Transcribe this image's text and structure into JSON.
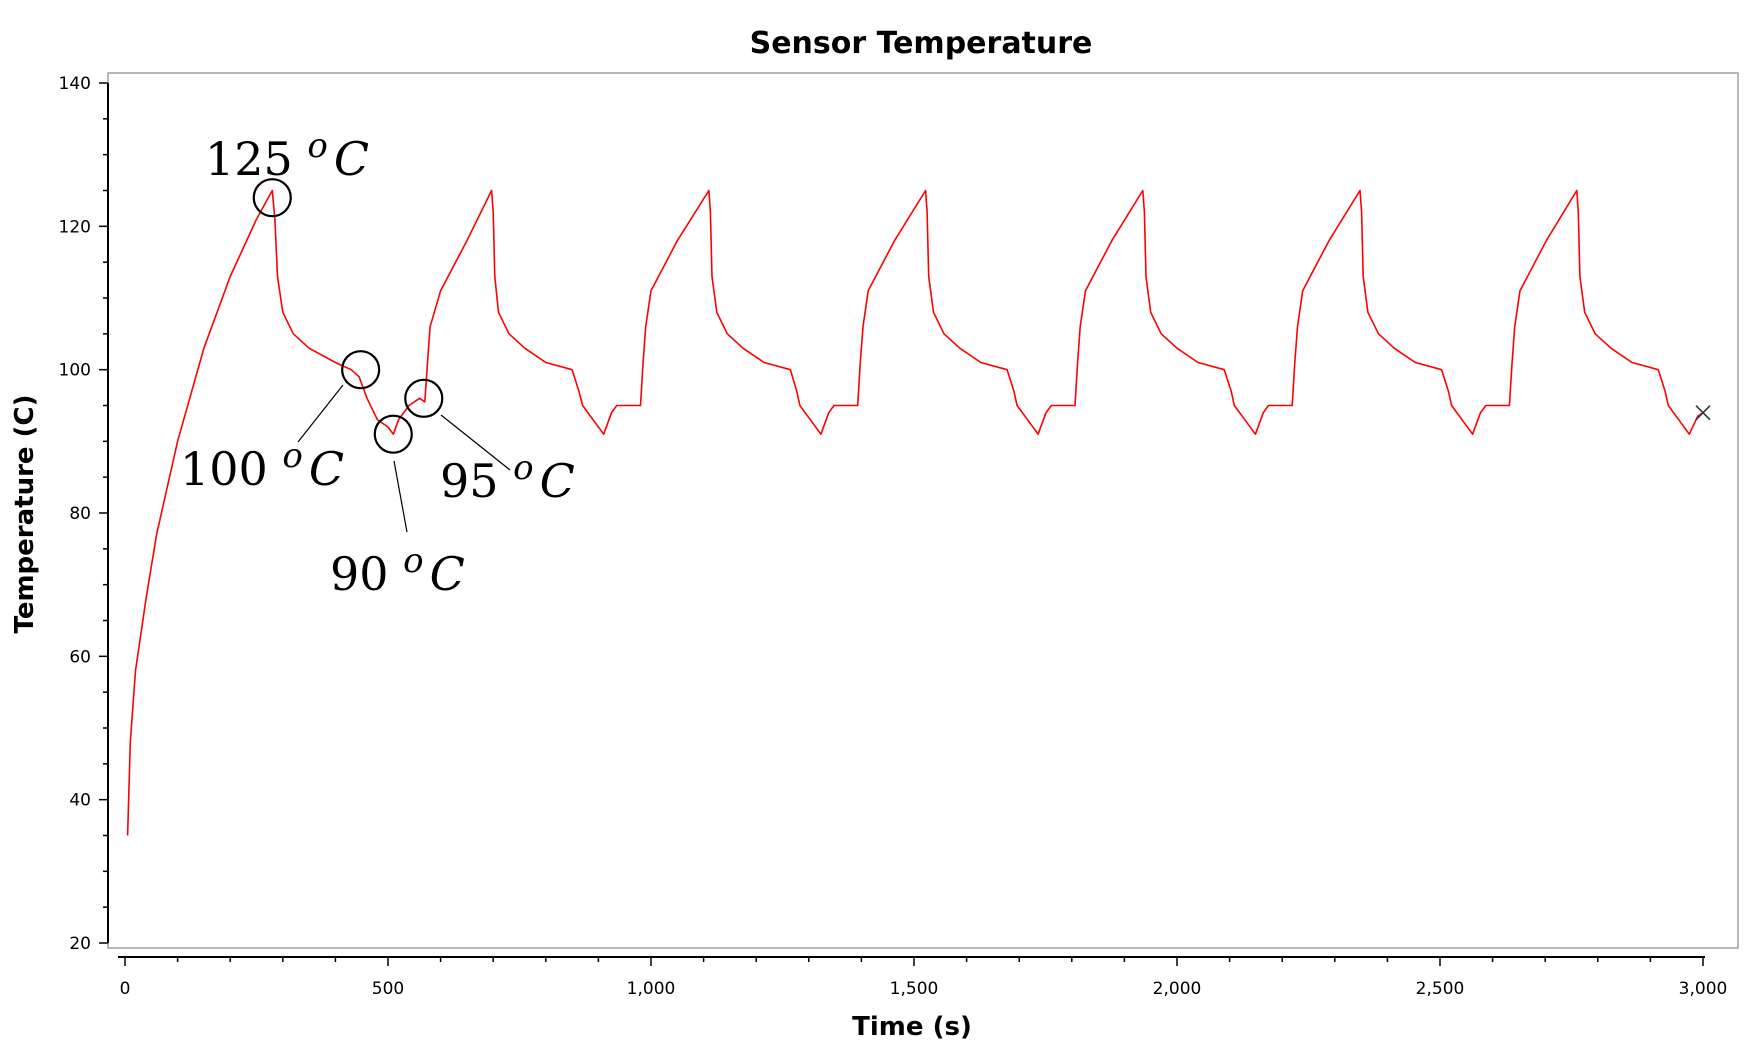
{
  "chart_data": {
    "type": "line",
    "title": "Sensor Temperature",
    "xlabel": "Time (s)",
    "ylabel": "Temperature (C)",
    "xlim": [
      0,
      3000
    ],
    "ylim": [
      20,
      140
    ],
    "x_ticks": [
      0,
      500,
      1000,
      1500,
      2000,
      2500,
      3000
    ],
    "x_tick_labels": [
      "0",
      "500",
      "1,000",
      "1,500",
      "2,000",
      "2,500",
      "3,000"
    ],
    "y_ticks": [
      20,
      40,
      60,
      80,
      100,
      120,
      140
    ],
    "y_tick_labels": [
      "20",
      "40",
      "60",
      "80",
      "100",
      "120",
      "140"
    ],
    "grid": false,
    "legend": "none",
    "line_color": "#ff0000",
    "series": [
      {
        "x": [
          5,
          10,
          20,
          40,
          60,
          100,
          150,
          200,
          250,
          280,
          285,
          290,
          300,
          320,
          350,
          400,
          430,
          445,
          460,
          480,
          500,
          510,
          520,
          540,
          560,
          570,
          575,
          580,
          600,
          650,
          697,
          700,
          703,
          710,
          730,
          760,
          800,
          850,
          863,
          870,
          890,
          910,
          925,
          935,
          950,
          980,
          985,
          990,
          1000,
          1050,
          1110,
          1113,
          1116,
          1125,
          1145,
          1175,
          1215,
          1265,
          1277,
          1283,
          1303,
          1323,
          1338,
          1348,
          1363,
          1393,
          1398,
          1403,
          1413,
          1463,
          1522,
          1525,
          1528,
          1537,
          1557,
          1587,
          1627,
          1677,
          1690,
          1696,
          1716,
          1736,
          1751,
          1761,
          1776,
          1806,
          1811,
          1816,
          1826,
          1876,
          1935,
          1938,
          1941,
          1950,
          1970,
          2000,
          2040,
          2090,
          2103,
          2109,
          2129,
          2149,
          2164,
          2174,
          2189,
          2219,
          2224,
          2229,
          2239,
          2289,
          2348,
          2351,
          2354,
          2363,
          2383,
          2413,
          2453,
          2503,
          2516,
          2522,
          2542,
          2562,
          2577,
          2587,
          2602,
          2632,
          2637,
          2642,
          2652,
          2702,
          2760,
          2763,
          2766,
          2775,
          2795,
          2825,
          2865,
          2915,
          2928,
          2934,
          2954,
          2974,
          2990,
          3000
        ],
        "y": [
          35,
          48,
          58,
          68,
          77,
          90,
          103,
          113,
          121,
          125,
          121,
          113,
          108,
          105,
          103,
          101,
          100,
          99,
          96,
          93,
          92,
          91,
          93,
          95,
          96,
          95.5,
          101,
          106,
          111,
          118,
          125,
          122,
          113,
          108,
          105,
          103,
          101,
          100,
          97,
          95,
          93,
          91,
          94,
          95,
          95,
          95,
          101,
          106,
          111,
          118,
          125,
          122,
          113,
          108,
          105,
          103,
          101,
          100,
          97,
          95,
          93,
          91,
          94,
          95,
          95,
          95,
          101,
          106,
          111,
          118,
          125,
          122,
          113,
          108,
          105,
          103,
          101,
          100,
          97,
          95,
          93,
          91,
          94,
          95,
          95,
          95,
          101,
          106,
          111,
          118,
          125,
          122,
          113,
          108,
          105,
          103,
          101,
          100,
          97,
          95,
          93,
          91,
          94,
          95,
          95,
          95,
          101,
          106,
          111,
          118,
          125,
          122,
          113,
          108,
          105,
          103,
          101,
          100,
          97,
          95,
          93,
          91,
          94,
          95,
          95,
          95,
          101,
          106,
          111,
          118,
          125,
          122,
          113,
          108,
          105,
          103,
          101,
          100,
          97,
          95,
          93,
          91,
          93.5,
          94
        ]
      }
    ],
    "end_marker": {
      "x": 3000,
      "y": 94
    },
    "annotations": [
      {
        "value": "125",
        "unit": "C",
        "sup": "o",
        "point": {
          "x": 280,
          "y": 124
        }
      },
      {
        "value": "100",
        "unit": "C",
        "sup": "o",
        "point": {
          "x": 448,
          "y": 100
        }
      },
      {
        "value": "90",
        "unit": "C",
        "sup": "o",
        "point": {
          "x": 510,
          "y": 91
        }
      },
      {
        "value": "95",
        "unit": "C",
        "sup": "o",
        "point": {
          "x": 568,
          "y": 96
        }
      }
    ]
  }
}
